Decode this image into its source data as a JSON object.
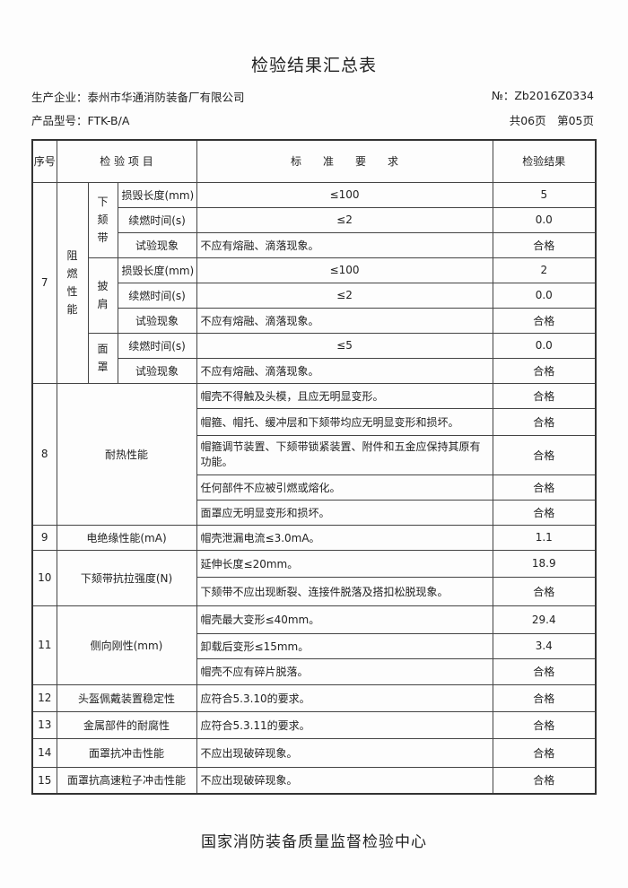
{
  "title": "检验结果汇总表",
  "company": "生产企业：泰州市华通消防装备厂有限公司",
  "model": "产品型号：FTK-B/A",
  "number": "№：Zb2016Z0334",
  "pages": "共06页　第05页",
  "header": {
    "seq": "序号",
    "item": "检 验 项 目",
    "standard": "标　　准　　要　　求",
    "result": "检验结果"
  },
  "r7": {
    "seq": "7",
    "group": "阻燃性能",
    "sub1": "下颏带",
    "sub2": "披肩",
    "sub3": "面罩",
    "rows": [
      {
        "item": "损毁长度(mm)",
        "std": "≤100",
        "res": "5"
      },
      {
        "item": "续燃时间(s)",
        "std": "≤2",
        "res": "0.0"
      },
      {
        "item": "试验现象",
        "std": "不应有熔融、滴落现象。",
        "res": "合格"
      },
      {
        "item": "损毁长度(mm)",
        "std": "≤100",
        "res": "2"
      },
      {
        "item": "续燃时间(s)",
        "std": "≤2",
        "res": "0.0"
      },
      {
        "item": "试验现象",
        "std": "不应有熔融、滴落现象。",
        "res": "合格"
      },
      {
        "item": "续燃时间(s)",
        "std": "≤5",
        "res": "0.0"
      },
      {
        "item": "试验现象",
        "std": "不应有熔融、滴落现象。",
        "res": "合格"
      }
    ]
  },
  "r8": {
    "seq": "8",
    "item": "耐热性能",
    "rows": [
      {
        "std": "帽壳不得触及头模，且应无明显变形。",
        "res": "合格"
      },
      {
        "std": "帽箍、帽托、缓冲层和下颏带均应无明显变形和损坏。",
        "res": "合格"
      },
      {
        "std": "帽箍调节装置、下颏带锁紧装置、附件和五金应保持其原有功能。",
        "res": "合格"
      },
      {
        "std": "任何部件不应被引燃或熔化。",
        "res": "合格"
      },
      {
        "std": "面罩应无明显变形和损坏。",
        "res": "合格"
      }
    ]
  },
  "r9": {
    "seq": "9",
    "item": "电绝缘性能(mA)",
    "std": "帽壳泄漏电流≤3.0mA。",
    "res": "1.1"
  },
  "r10": {
    "seq": "10",
    "item": "下颏带抗拉强度(N)",
    "rows": [
      {
        "std": "延伸长度≤20mm。",
        "res": "18.9"
      },
      {
        "std": "下颏带不应出现断裂、连接件脱落及搭扣松脱现象。",
        "res": "合格"
      }
    ]
  },
  "r11": {
    "seq": "11",
    "item": "侧向刚性(mm)",
    "rows": [
      {
        "std": "帽壳最大变形≤40mm。",
        "res": "29.4"
      },
      {
        "std": "卸载后变形≤15mm。",
        "res": "3.4"
      },
      {
        "std": "帽壳不应有碎片脱落。",
        "res": "合格"
      }
    ]
  },
  "single": [
    {
      "seq": "12",
      "item": "头盔佩戴装置稳定性",
      "std": "应符合5.3.10的要求。",
      "res": "合格"
    },
    {
      "seq": "13",
      "item": "金属部件的耐腐性",
      "std": "应符合5.3.11的要求。",
      "res": "合格"
    },
    {
      "seq": "14",
      "item": "面罩抗冲击性能",
      "std": "不应出现破碎现象。",
      "res": "合格"
    },
    {
      "seq": "15",
      "item": "面罩抗高速粒子冲击性能",
      "std": "不应出现破碎现象。",
      "res": "合格"
    }
  ],
  "footer": "国家消防装备质量监督检验中心"
}
